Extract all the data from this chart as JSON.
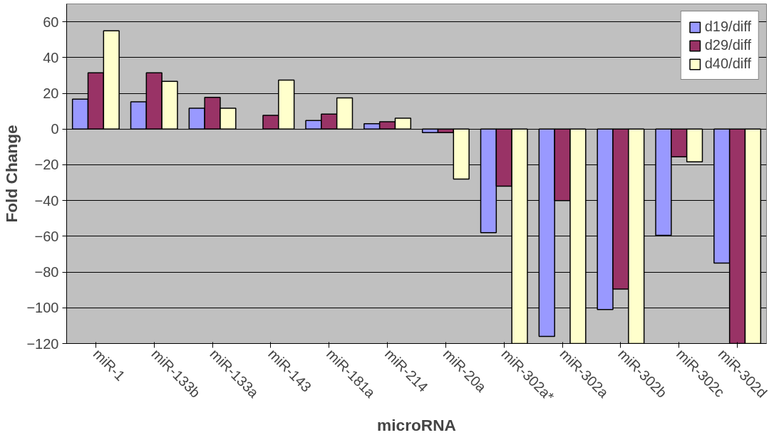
{
  "chart_data": {
    "type": "bar",
    "xlabel": "microRNA",
    "ylabel": "Fold Change",
    "categories": [
      "miR-1",
      "miR-133b",
      "miR-133a",
      "miR-143",
      "miR-181a",
      "miR-214",
      "miR-20a",
      "miR-302a*",
      "miR-302a",
      "miR-302b",
      "miR-302c",
      "miR-302d"
    ],
    "series": [
      {
        "name": "d19/diff",
        "color": "#9999ff",
        "values": [
          16.7,
          15.2,
          11.6,
          null,
          4.8,
          3,
          -2,
          -58,
          -116,
          -101,
          -59.5,
          -75
        ]
      },
      {
        "name": "d29/diff",
        "color": "#993366",
        "values": [
          31.5,
          31.5,
          17.7,
          7.7,
          8.4,
          4.1,
          -2,
          -32,
          -40,
          -89.5,
          -15.5,
          -120
        ]
      },
      {
        "name": "d40/diff",
        "color": "#ffffcc",
        "values": [
          55,
          26.7,
          11.6,
          27.4,
          17.4,
          6.1,
          -28,
          -120,
          -120,
          -120,
          -18.3,
          -120
        ]
      }
    ],
    "ylim": [
      -120,
      70
    ],
    "yticks": [
      -120,
      -100,
      -80,
      -60,
      -40,
      -20,
      0,
      20,
      40,
      60
    ],
    "grid": "y",
    "legend": "top right"
  }
}
